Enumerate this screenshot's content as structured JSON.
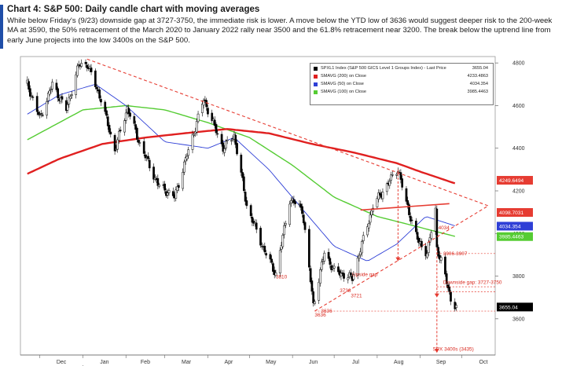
{
  "header": {
    "title": "Chart 4: S&P 500: Daily candle chart with moving averages",
    "body": "While below Friday's (9/23) downside gap at 3727-3750, the immediate risk is lower. A move below the YTD low of 3636 would suggest deeper risk to the 200-week MA at 3590, the 50% retracement of the March 2020 to January 2022 rally near 3500 and the 61.8% retracement near 3200. The break below the uptrend line from early June projects into the low 3400s on the S&P 500."
  },
  "legend": {
    "rows": [
      {
        "name": "SPXL1 Index (S&P 500 GICS Level 1 Groups Index) - Last Price",
        "value": "3655.04",
        "color": "#000000"
      },
      {
        "name": "SMAVG (200) on Close",
        "value": "4233.4863",
        "color": "#e02020"
      },
      {
        "name": "SMAVG (50) on Close",
        "value": "4034.354",
        "color": "#2e3fd6"
      },
      {
        "name": "SMAVG (100) on Close",
        "value": "3985.4463",
        "color": "#55cc33"
      }
    ]
  },
  "chart_data": {
    "type": "candlestick",
    "title": "Chart 4: S&P 500: Daily candle chart with moving averages",
    "y_ticks": [
      "4800",
      "4600",
      "4400",
      "4200",
      "4000",
      "3800",
      "3600"
    ],
    "ylim": [
      3430,
      4830
    ],
    "x_ticks": [
      "Dec",
      "Jan",
      "Feb",
      "Mar",
      "Apr",
      "May",
      "Jun",
      "Jul",
      "Aug",
      "Sep",
      "Oct"
    ],
    "x_years": [
      "2021",
      "2022"
    ],
    "price_anchors": [
      [
        "2021-11-22",
        4700
      ],
      [
        "2021-12-01",
        4540
      ],
      [
        "2021-12-10",
        4700
      ],
      [
        "2021-12-20",
        4580
      ],
      [
        "2021-12-29",
        4790
      ],
      [
        "2022-01-04",
        4796
      ],
      [
        "2022-01-14",
        4630
      ],
      [
        "2022-01-24",
        4390
      ],
      [
        "2022-02-02",
        4590
      ],
      [
        "2022-02-11",
        4420
      ],
      [
        "2022-02-24",
        4230
      ],
      [
        "2022-03-08",
        4170
      ],
      [
        "2022-03-29",
        4630
      ],
      [
        "2022-04-12",
        4400
      ],
      [
        "2022-04-20",
        4460
      ],
      [
        "2022-04-29",
        4130
      ],
      [
        "2022-05-11",
        3930
      ],
      [
        "2022-05-20",
        3810
      ],
      [
        "2022-05-30",
        4160
      ],
      [
        "2022-06-08",
        4115
      ],
      [
        "2022-06-16",
        3666
      ],
      [
        "2022-06-24",
        3911
      ],
      [
        "2022-07-01",
        3825
      ],
      [
        "2022-07-14",
        3790
      ],
      [
        "2022-07-29",
        4130
      ],
      [
        "2022-08-16",
        4305
      ],
      [
        "2022-08-22",
        4140
      ],
      [
        "2022-08-31",
        3955
      ],
      [
        "2022-09-06",
        3910
      ],
      [
        "2022-09-12",
        4110
      ],
      [
        "2022-09-13",
        3932
      ],
      [
        "2022-09-16",
        3873
      ],
      [
        "2022-09-23",
        3693
      ],
      [
        "2022-09-27",
        3655
      ]
    ],
    "sma200_anchors": [
      [
        "2021-11-22",
        4280
      ],
      [
        "2021-12-15",
        4350
      ],
      [
        "2022-01-15",
        4420
      ],
      [
        "2022-02-15",
        4450
      ],
      [
        "2022-03-15",
        4470
      ],
      [
        "2022-04-15",
        4490
      ],
      [
        "2022-05-15",
        4470
      ],
      [
        "2022-06-15",
        4420
      ],
      [
        "2022-07-15",
        4380
      ],
      [
        "2022-08-15",
        4330
      ],
      [
        "2022-09-01",
        4290
      ],
      [
        "2022-09-27",
        4233
      ]
    ],
    "sma50_anchors": [
      [
        "2021-11-22",
        4560
      ],
      [
        "2021-12-15",
        4650
      ],
      [
        "2022-01-10",
        4700
      ],
      [
        "2022-02-01",
        4600
      ],
      [
        "2022-03-01",
        4430
      ],
      [
        "2022-04-01",
        4400
      ],
      [
        "2022-04-20",
        4450
      ],
      [
        "2022-05-15",
        4300
      ],
      [
        "2022-06-10",
        4100
      ],
      [
        "2022-07-01",
        3940
      ],
      [
        "2022-07-25",
        3870
      ],
      [
        "2022-08-15",
        3950
      ],
      [
        "2022-09-05",
        4080
      ],
      [
        "2022-09-27",
        4034
      ]
    ],
    "sma100_anchors": [
      [
        "2021-11-22",
        4440
      ],
      [
        "2022-01-01",
        4580
      ],
      [
        "2022-02-01",
        4600
      ],
      [
        "2022-03-01",
        4580
      ],
      [
        "2022-04-01",
        4520
      ],
      [
        "2022-05-01",
        4450
      ],
      [
        "2022-06-01",
        4320
      ],
      [
        "2022-07-01",
        4170
      ],
      [
        "2022-08-01",
        4080
      ],
      [
        "2022-08-25",
        4040
      ],
      [
        "2022-09-27",
        3985
      ]
    ],
    "downtrend_line": [
      [
        "2022-01-04",
        4818
      ],
      [
        "2022-10-20",
        4130
      ]
    ],
    "uptrend_line": [
      [
        "2022-06-17",
        3636
      ],
      [
        "2022-10-20",
        4130
      ]
    ],
    "horizontal_levels": [
      {
        "value": 3636,
        "label": "3636",
        "from": "2022-06-17"
      },
      {
        "value": 3906,
        "label": "3906-3907",
        "from": "2022-09-13"
      },
      {
        "value": 3727,
        "label": "Downside gap: 3727-3750",
        "from": "2022-09-13"
      },
      {
        "value": 3750,
        "label": "",
        "from": "2022-09-13"
      }
    ],
    "annotations": [
      {
        "text": "3810",
        "x": "2022-05-20",
        "y": 3790
      },
      {
        "text": "Upside gap",
        "x": "2022-07-14",
        "y": 3800
      },
      {
        "text": "3738",
        "x": "2022-07-05",
        "y": 3725
      },
      {
        "text": "3721",
        "x": "2022-07-13",
        "y": 3700
      },
      {
        "text": "3636",
        "x": "2022-06-17",
        "y": 3610
      },
      {
        "text": "4034",
        "x": "2022-09-14",
        "y": 4020
      },
      {
        "text": "SPX 3400s (3435)",
        "x": "2022-09-10",
        "y": 3450
      }
    ],
    "price_tags": [
      {
        "text": "4249.6494",
        "value": 4249.6494,
        "bg": "#e63c32"
      },
      {
        "text": "4098.7031",
        "value": 4098.7031,
        "bg": "#e63c32"
      },
      {
        "text": "4034.354",
        "value": 4034.354,
        "bg": "#2e3fd6"
      },
      {
        "text": "3985.4463",
        "value": 3985.4463,
        "bg": "#55cc33"
      },
      {
        "text": "3655.04",
        "value": 3655.04,
        "bg": "#000000"
      }
    ],
    "grid": false
  }
}
